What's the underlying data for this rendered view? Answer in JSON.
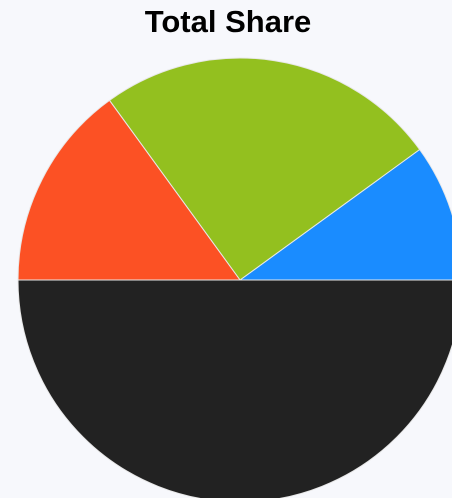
{
  "chart_data": {
    "type": "pie",
    "title": "Total Share",
    "values": [
      10,
      25,
      15,
      50
    ],
    "colors": [
      "#1a8cff",
      "#93c01f",
      "#fc5124",
      "#222222"
    ]
  }
}
